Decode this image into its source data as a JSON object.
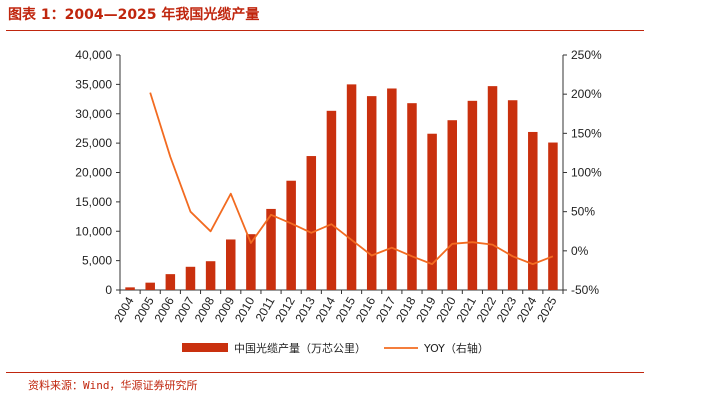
{
  "title": "图表 1：2004—2025 年我国光缆产量",
  "source": "资料来源：Wind，华源证券研究所",
  "colors": {
    "bar": "#c9300e",
    "line": "#f26b21",
    "accent": "#c0260e"
  },
  "chart_data": {
    "type": "bar",
    "categories": [
      "2004",
      "2005",
      "2006",
      "2007",
      "2008",
      "2009",
      "2010",
      "2011",
      "2012",
      "2013",
      "2014",
      "2015",
      "2016",
      "2017",
      "2018",
      "2019",
      "2020",
      "2021",
      "2022",
      "2023",
      "2024",
      "2025"
    ],
    "series": [
      {
        "name": "中国光缆产量（万芯公里）",
        "type": "bar",
        "axis": "left",
        "values": [
          450,
          1250,
          2700,
          3950,
          4900,
          8600,
          9500,
          13800,
          18600,
          22800,
          30500,
          35000,
          33000,
          34300,
          31800,
          26600,
          28900,
          32200,
          34700,
          32300,
          26900,
          25100
        ]
      },
      {
        "name": "YOY（右轴）",
        "type": "line",
        "axis": "right",
        "values": [
          null,
          202,
          120,
          50,
          25,
          73,
          10,
          46,
          35,
          23,
          34,
          14,
          -6,
          4,
          -7,
          -17,
          9,
          11,
          8,
          -7,
          -17,
          -7
        ]
      }
    ],
    "y_left": {
      "min": 0,
      "max": 40000,
      "ticks": [
        "0",
        "5,000",
        "10,000",
        "15,000",
        "20,000",
        "25,000",
        "30,000",
        "35,000",
        "40,000"
      ]
    },
    "y_right": {
      "min": -50,
      "max": 250,
      "ticks": [
        "-50%",
        "0%",
        "50%",
        "100%",
        "150%",
        "200%",
        "250%"
      ]
    },
    "grid": false,
    "legend": "bottom"
  }
}
